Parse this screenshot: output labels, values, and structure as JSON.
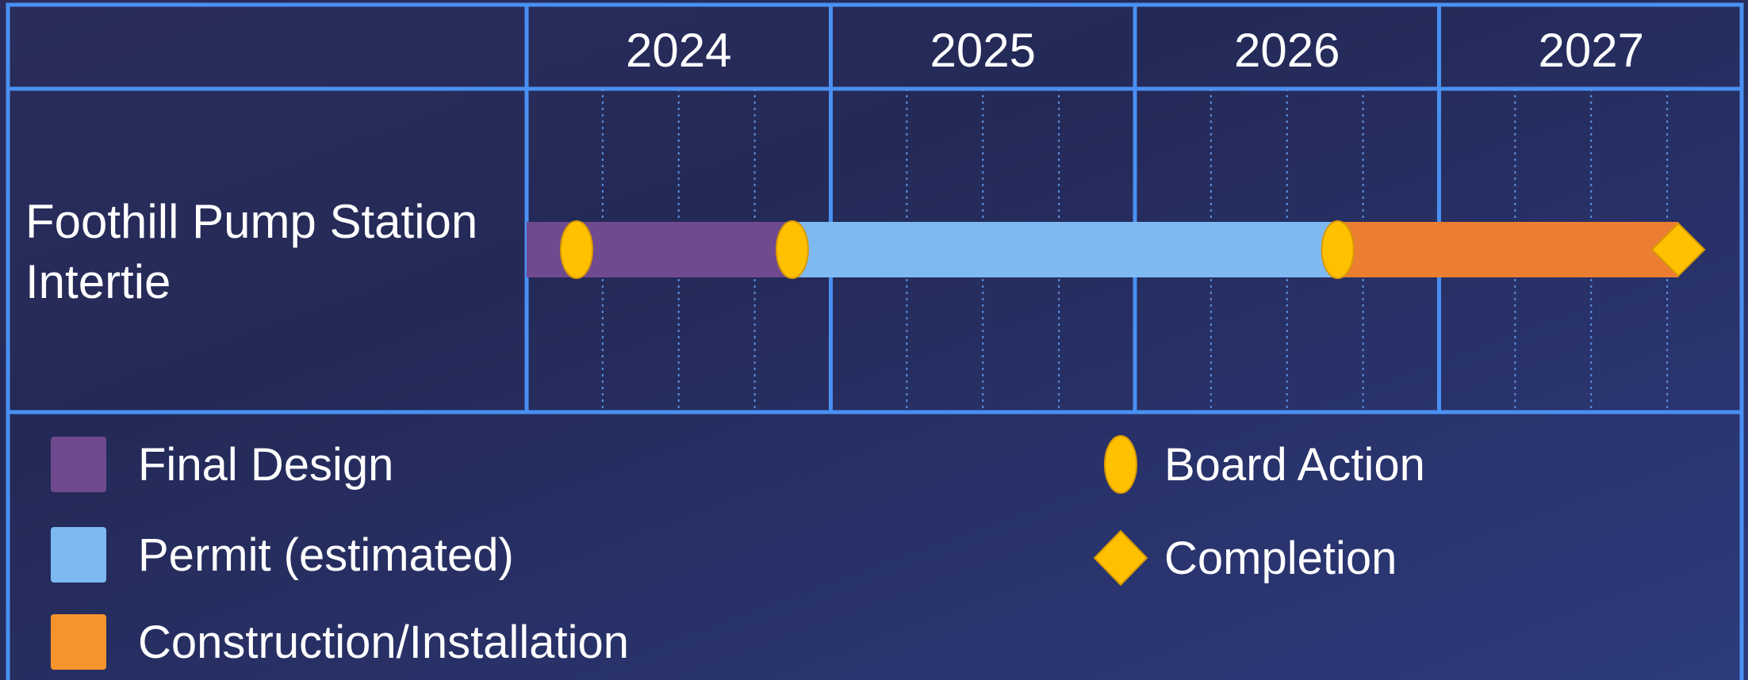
{
  "colors": {
    "grid": "#4a90f2",
    "minor_grid": "#5b8fe0",
    "final_design": "#6f4a8e",
    "permit": "#7eb9f2",
    "construction": "#ec7e31",
    "construction_legend": "#f7932d",
    "milestone": "#ffc000",
    "milestone_stroke": "#d89a00"
  },
  "chart_data": {
    "type": "gantt",
    "years": [
      "2024",
      "2025",
      "2026",
      "2027"
    ],
    "x_range": [
      "2024-01-01",
      "2028-01-01"
    ],
    "minor_ticks": "quarterly",
    "rows": [
      {
        "label": "Foothill Pump Station Intertie",
        "phases": [
          {
            "name": "Final Design",
            "start": "2024-01-01",
            "end": "2024-11-15",
            "color": "#6f4a8e"
          },
          {
            "name": "Permit (estimated)",
            "start": "2024-11-15",
            "end": "2026-09-01",
            "color": "#7eb9f2"
          },
          {
            "name": "Construction/Installation",
            "start": "2026-09-01",
            "end": "2027-10-15",
            "color": "#ec7e31"
          }
        ],
        "milestones": [
          {
            "type": "Board Action",
            "date": "2024-03-01"
          },
          {
            "type": "Board Action",
            "date": "2024-11-15"
          },
          {
            "type": "Board Action",
            "date": "2026-09-01"
          },
          {
            "type": "Completion",
            "date": "2027-10-15"
          }
        ]
      }
    ]
  },
  "legend": {
    "phases": [
      {
        "label": "Final Design",
        "color": "#6f4a8e"
      },
      {
        "label": "Permit (estimated)",
        "color": "#7eb9f2"
      },
      {
        "label": "Construction/Installation",
        "color": "#f7932d"
      }
    ],
    "milestones": [
      {
        "label": "Board Action",
        "icon": "oval-milestone-icon"
      },
      {
        "label": "Completion",
        "icon": "diamond-milestone-icon"
      }
    ]
  }
}
